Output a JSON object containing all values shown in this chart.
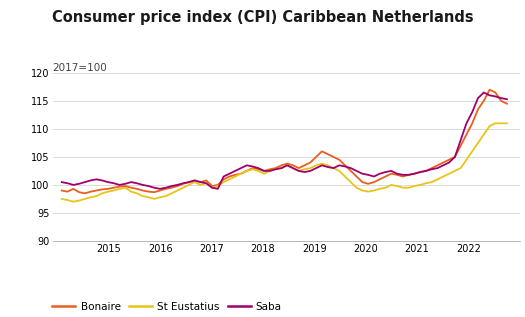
{
  "title": "Consumer price index (CPI) Caribbean Netherlands",
  "subtitle": "2017=100",
  "ylim": [
    90,
    120
  ],
  "yticks": [
    90,
    95,
    100,
    105,
    110,
    115,
    120
  ],
  "background_color": "#ffffff",
  "plot_area_color": "#ffffff",
  "footer_color": "#e0e0e0",
  "colors": {
    "Bonaire": "#e8601c",
    "St Eustatius": "#e8c419",
    "Saba": "#a0006e"
  },
  "bonaire": [
    99.0,
    98.8,
    99.3,
    98.7,
    98.5,
    98.8,
    99.0,
    99.2,
    99.3,
    99.5,
    99.7,
    99.8,
    99.5,
    99.3,
    99.0,
    98.8,
    98.7,
    99.0,
    99.3,
    99.5,
    99.8,
    100.2,
    100.5,
    100.8,
    100.5,
    100.8,
    99.8,
    100.0,
    101.0,
    101.5,
    101.8,
    102.0,
    102.5,
    103.0,
    102.8,
    102.5,
    102.8,
    103.0,
    103.5,
    103.8,
    103.5,
    103.0,
    103.5,
    104.0,
    105.0,
    106.0,
    105.5,
    105.0,
    104.5,
    103.5,
    102.5,
    101.5,
    100.5,
    100.2,
    100.5,
    101.0,
    101.5,
    102.0,
    101.8,
    101.5,
    101.8,
    102.0,
    102.3,
    102.5,
    103.0,
    103.5,
    104.0,
    104.5,
    105.0,
    107.0,
    109.0,
    111.0,
    113.5,
    115.0,
    117.0,
    116.5,
    115.0,
    114.5
  ],
  "st_eustatius": [
    97.5,
    97.3,
    97.0,
    97.2,
    97.5,
    97.8,
    98.0,
    98.5,
    98.8,
    99.0,
    99.3,
    99.5,
    98.8,
    98.5,
    98.0,
    97.8,
    97.5,
    97.8,
    98.0,
    98.5,
    99.0,
    99.5,
    100.0,
    100.5,
    100.0,
    100.3,
    99.5,
    99.8,
    100.5,
    101.0,
    101.5,
    102.0,
    102.5,
    102.8,
    102.5,
    102.0,
    102.5,
    102.8,
    103.0,
    103.5,
    103.0,
    102.5,
    102.8,
    103.0,
    103.5,
    103.8,
    103.5,
    103.0,
    102.5,
    101.5,
    100.5,
    99.5,
    99.0,
    98.8,
    99.0,
    99.3,
    99.5,
    100.0,
    99.8,
    99.5,
    99.5,
    99.8,
    100.0,
    100.3,
    100.5,
    101.0,
    101.5,
    102.0,
    102.5,
    103.0,
    104.5,
    106.0,
    107.5,
    109.0,
    110.5,
    111.0,
    111.0,
    111.0
  ],
  "saba": [
    100.5,
    100.3,
    100.0,
    100.2,
    100.5,
    100.8,
    101.0,
    100.8,
    100.5,
    100.3,
    100.0,
    100.2,
    100.5,
    100.3,
    100.0,
    99.8,
    99.5,
    99.3,
    99.5,
    99.8,
    100.0,
    100.3,
    100.5,
    100.8,
    100.5,
    100.3,
    99.5,
    99.3,
    101.5,
    102.0,
    102.5,
    103.0,
    103.5,
    103.3,
    103.0,
    102.5,
    102.5,
    102.8,
    103.0,
    103.5,
    103.0,
    102.5,
    102.3,
    102.5,
    103.0,
    103.5,
    103.2,
    103.0,
    103.5,
    103.3,
    103.0,
    102.5,
    102.0,
    101.8,
    101.5,
    102.0,
    102.3,
    102.5,
    102.0,
    101.8,
    101.8,
    102.0,
    102.3,
    102.5,
    102.8,
    103.0,
    103.5,
    104.0,
    105.0,
    108.0,
    111.0,
    113.0,
    115.5,
    116.5,
    116.0,
    115.8,
    115.5,
    115.3
  ],
  "n_points": 78,
  "start_year": 2014.08,
  "end_year": 2022.75,
  "xlim_left": 2013.9,
  "xlim_right": 2023.0
}
